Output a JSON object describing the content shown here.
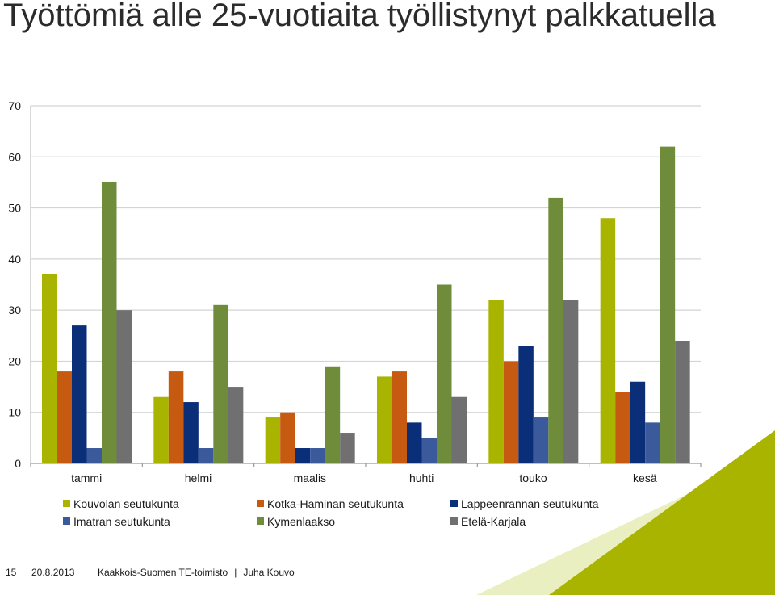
{
  "slide": {
    "title": "Työttömiä alle 25-vuotiaita työllistynyt palkkatuella",
    "page_number": "15",
    "date": "20.8.2013",
    "organization": "Kaakkois-Suomen TE-toimisto",
    "separator": "|",
    "author": "Juha Kouvo"
  },
  "colors": {
    "accent_green": "#a8b400"
  },
  "chart_data": {
    "type": "bar",
    "categories": [
      "tammi",
      "helmi",
      "maalis",
      "huhti",
      "touko",
      "kesä"
    ],
    "ylim": [
      0,
      70
    ],
    "yticks": [
      0,
      10,
      20,
      30,
      40,
      50,
      60,
      70
    ],
    "grid": true,
    "legend_position": "bottom",
    "series": [
      {
        "name": "Kouvolan seutukunta",
        "color": "#a8b400",
        "values": [
          37,
          13,
          9,
          17,
          32,
          48
        ]
      },
      {
        "name": "Kotka-Haminan seutukunta",
        "color": "#c65a10",
        "values": [
          18,
          18,
          10,
          18,
          20,
          14
        ]
      },
      {
        "name": "Lappeenrannan seutukunta",
        "color": "#0a2f78",
        "values": [
          27,
          12,
          3,
          8,
          23,
          16
        ]
      },
      {
        "name": "Imatran seutukunta",
        "color": "#3a5a9c",
        "values": [
          3,
          3,
          3,
          5,
          9,
          8
        ]
      },
      {
        "name": "Kymenlaakso",
        "color": "#6e8c3a",
        "values": [
          55,
          31,
          19,
          35,
          52,
          62
        ]
      },
      {
        "name": "Etelä-Karjala",
        "color": "#707070",
        "values": [
          30,
          15,
          6,
          13,
          32,
          24
        ]
      }
    ]
  }
}
